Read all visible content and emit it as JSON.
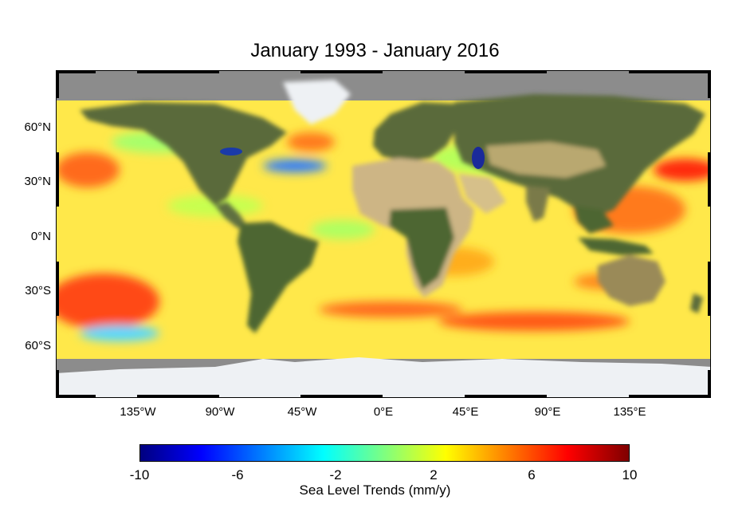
{
  "title": "January 1993 - January 2016",
  "lat_labels": [
    "60°N",
    "30°N",
    "0°N",
    "30°S",
    "60°S"
  ],
  "lat_values": [
    60,
    30,
    0,
    -30,
    -60
  ],
  "lon_labels": [
    "135°W",
    "90°W",
    "45°W",
    "0°E",
    "45°E",
    "90°E",
    "135°E"
  ],
  "lon_values": [
    -135,
    -90,
    -45,
    0,
    45,
    90,
    135
  ],
  "colorbar": {
    "label": "Sea Level Trends (mm/y)",
    "range": [
      -10,
      10
    ],
    "ticks": [
      "-10",
      "-6",
      "-2",
      "2",
      "6",
      "10"
    ],
    "colors": [
      "#00007f",
      "#0000ff",
      "#007fff",
      "#00ffff",
      "#7fff7f",
      "#ffff00",
      "#ff7f00",
      "#ff0000",
      "#7f0000"
    ]
  },
  "map": {
    "ocean_base_color": "#ffe84a",
    "land_color": "#5a6b3a",
    "desert_color": "#d6c08a",
    "ice_color": "#eef1f4",
    "nodata_color": "#8c8c8c"
  }
}
